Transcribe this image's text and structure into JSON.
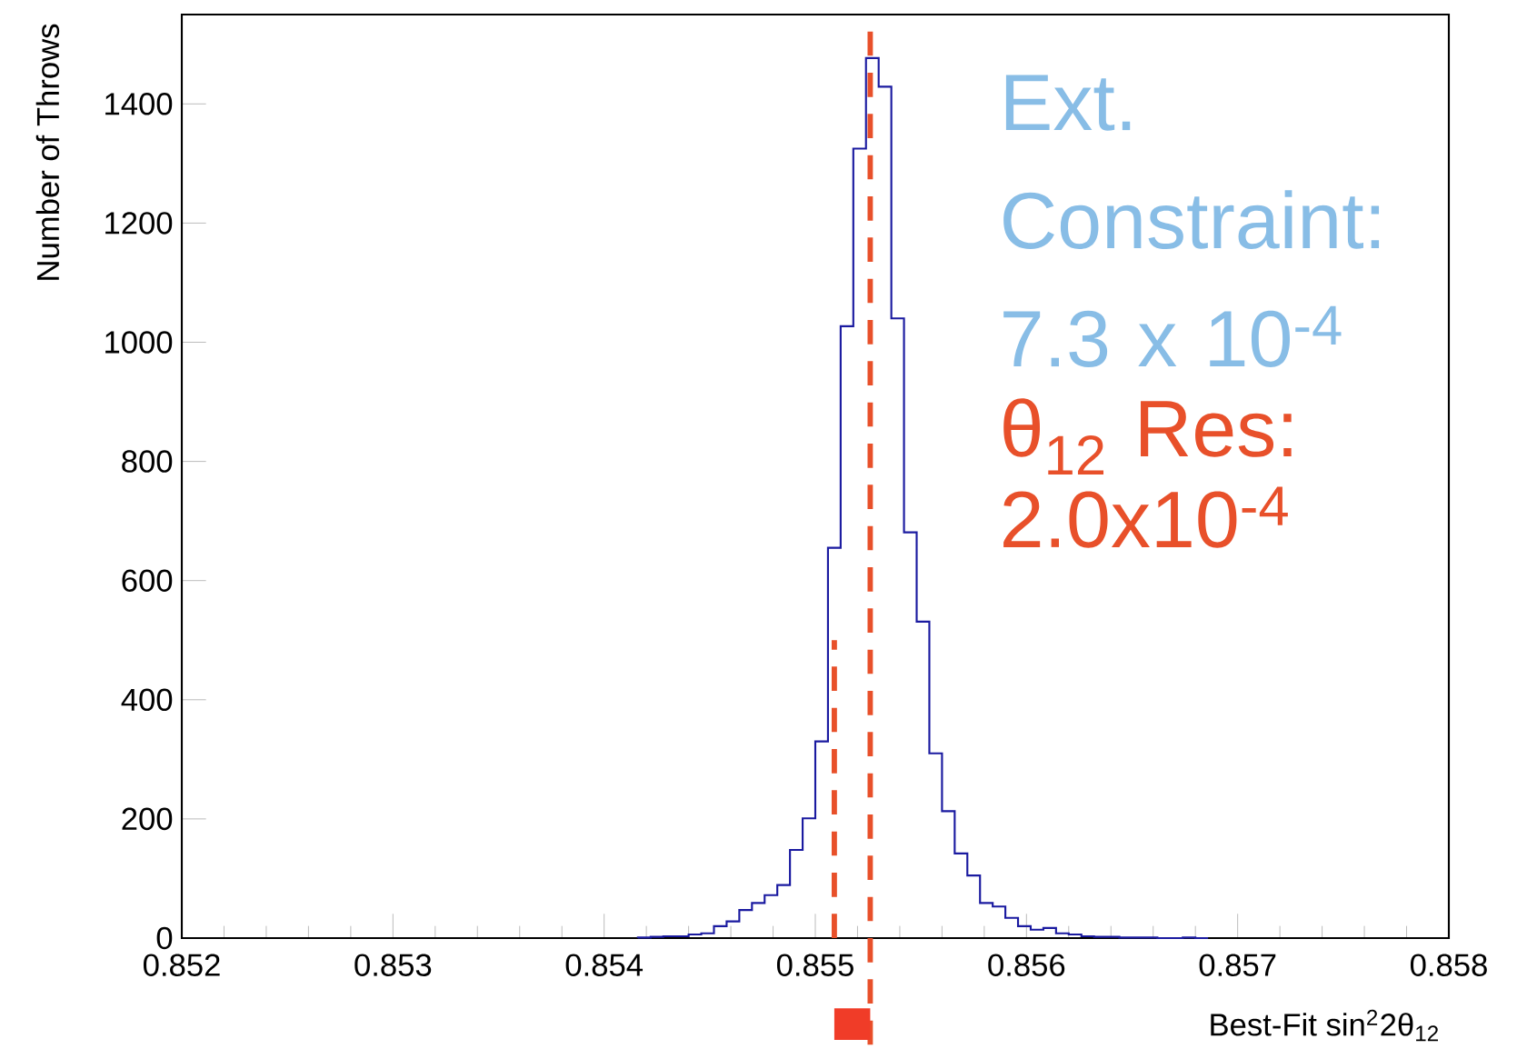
{
  "chart_data": {
    "type": "histogram",
    "xlabel": "Best-Fit sin$^{2}$2θ$_{12}$",
    "ylabel": "Number of Throws",
    "bins": [
      0.85416,
      0.85422,
      0.85428,
      0.85434,
      0.8544,
      0.85446,
      0.85452,
      0.85458,
      0.85464,
      0.8547,
      0.85476,
      0.85482,
      0.85488,
      0.85494,
      0.855,
      0.85506,
      0.85512,
      0.85518,
      0.85524,
      0.8553,
      0.85536,
      0.85542,
      0.85548,
      0.85554,
      0.8556,
      0.85566,
      0.85572,
      0.85578,
      0.85584,
      0.8559,
      0.85596,
      0.85602,
      0.85608,
      0.85614,
      0.8562,
      0.85626,
      0.85632,
      0.85638,
      0.85644,
      0.8565,
      0.85656,
      0.85662,
      0.85668,
      0.85674,
      0.8568,
      0.85686
    ],
    "values": [
      1,
      2,
      3,
      3,
      6,
      8,
      20,
      28,
      47,
      59,
      72,
      89,
      148,
      201,
      330,
      655,
      1027,
      1325,
      1477,
      1429,
      1040,
      681,
      531,
      310,
      213,
      142,
      105,
      59,
      53,
      34,
      20,
      14,
      17,
      8,
      6,
      3,
      2,
      2,
      1,
      1,
      1,
      0,
      0,
      1,
      0
    ],
    "color": "#1a1aa0",
    "series": [
      {
        "type": "line",
        "color": "#e8502a",
        "line_style": "dashed",
        "x": [
          0.85509,
          0.85509
        ],
        "values": [
          0,
          500
        ]
      }
    ],
    "xlim": [
      0.852,
      0.858
    ],
    "ylim": [
      0,
      1550
    ],
    "xticks": [
      0.852,
      0.853,
      0.854,
      0.855,
      0.856,
      0.857,
      0.858
    ],
    "yticks": [
      0,
      200,
      400,
      600,
      800,
      1000,
      1200,
      1400
    ],
    "ref_lines": [
      {
        "axis": "x",
        "value": 0.85526,
        "color": "#e8502a",
        "line_style": "dashed"
      }
    ],
    "annotations": [
      "Ext. Constraint: 7.3 x 10$^{-4}$",
      "θ$_{12}$ Res: 2.0x10$^{-4}$"
    ]
  }
}
